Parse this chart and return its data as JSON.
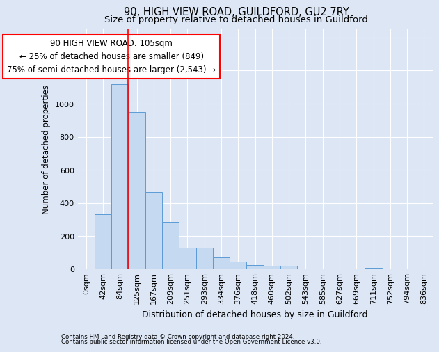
{
  "title1": "90, HIGH VIEW ROAD, GUILDFORD, GU2 7RY",
  "title2": "Size of property relative to detached houses in Guildford",
  "xlabel": "Distribution of detached houses by size in Guildford",
  "ylabel": "Number of detached properties",
  "categories": [
    "0sqm",
    "42sqm",
    "84sqm",
    "125sqm",
    "167sqm",
    "209sqm",
    "251sqm",
    "293sqm",
    "334sqm",
    "376sqm",
    "418sqm",
    "460sqm",
    "502sqm",
    "543sqm",
    "585sqm",
    "627sqm",
    "669sqm",
    "711sqm",
    "752sqm",
    "794sqm",
    "836sqm"
  ],
  "values": [
    5,
    330,
    1120,
    950,
    465,
    285,
    130,
    130,
    70,
    45,
    25,
    20,
    20,
    0,
    0,
    0,
    0,
    10,
    0,
    0,
    0
  ],
  "bar_color": "#c5d9f1",
  "bar_edge_color": "#5b9bd5",
  "ylim": [
    0,
    1450
  ],
  "yticks": [
    0,
    200,
    400,
    600,
    800,
    1000,
    1200,
    1400
  ],
  "red_line_x": 2.5,
  "annotation_box_text": "90 HIGH VIEW ROAD: 105sqm\n← 25% of detached houses are smaller (849)\n75% of semi-detached houses are larger (2,543) →",
  "footer_line1": "Contains HM Land Registry data © Crown copyright and database right 2024.",
  "footer_line2": "Contains public sector information licensed under the Open Government Licence v3.0.",
  "background_color": "#dce6f5",
  "grid_color": "#ffffff",
  "title1_fontsize": 10.5,
  "title2_fontsize": 9.5,
  "xlabel_fontsize": 9,
  "ylabel_fontsize": 8.5,
  "tick_fontsize": 8,
  "annotation_fontsize": 8.5
}
